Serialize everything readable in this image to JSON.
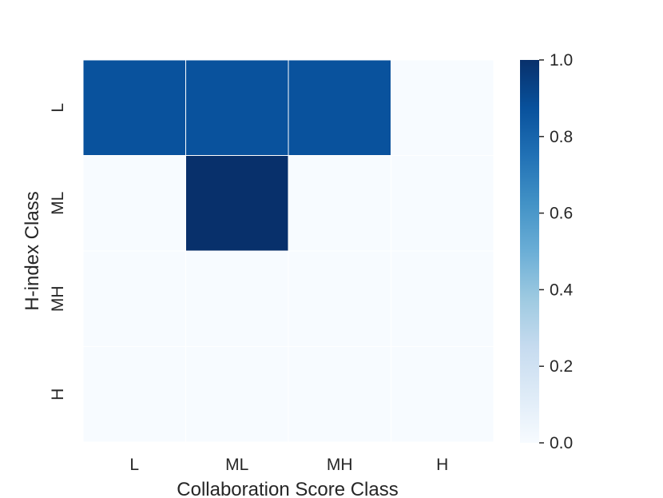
{
  "chart_data": {
    "type": "heatmap",
    "title": "",
    "xlabel": "Collaboration Score Class",
    "ylabel": "H-index Class",
    "x_categories": [
      "L",
      "ML",
      "MH",
      "H"
    ],
    "y_categories": [
      "L",
      "ML",
      "MH",
      "H"
    ],
    "values": [
      [
        0.87,
        0.87,
        0.87,
        0.0
      ],
      [
        0.0,
        1.0,
        0.0,
        0.0
      ],
      [
        0.0,
        0.0,
        0.0,
        0.0
      ],
      [
        0.0,
        0.0,
        0.0,
        0.0
      ]
    ],
    "colorbar": {
      "min": 0.0,
      "max": 1.0,
      "ticks": [
        "0.0",
        "0.2",
        "0.4",
        "0.6",
        "0.8",
        "1.0"
      ],
      "colormap": "Blues"
    }
  }
}
